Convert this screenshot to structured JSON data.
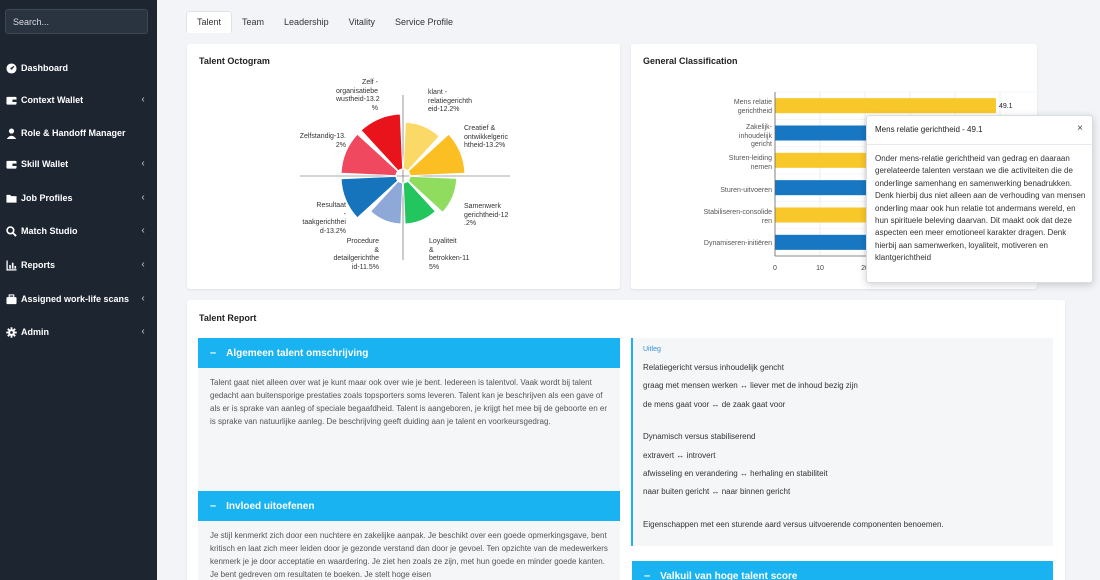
{
  "sidebar": {
    "search_placeholder": "Search...",
    "items": [
      {
        "label": "Dashboard",
        "icon": "dashboard-icon",
        "caret": false
      },
      {
        "label": "Context Wallet",
        "icon": "wallet-icon",
        "caret": true
      },
      {
        "label": "Role & Handoff Manager",
        "icon": "user-icon",
        "caret": false
      },
      {
        "label": "Skill Wallet",
        "icon": "wallet-icon",
        "caret": true
      },
      {
        "label": "Job Profiles",
        "icon": "folder-icon",
        "caret": true
      },
      {
        "label": "Match Studio",
        "icon": "search-icon",
        "caret": true
      },
      {
        "label": "Reports",
        "icon": "chart-icon",
        "caret": true
      },
      {
        "label": "Assigned work-life scans",
        "icon": "briefcase-icon",
        "caret": true
      },
      {
        "label": "Admin",
        "icon": "gear-icon",
        "caret": true
      }
    ]
  },
  "tabs": [
    "Talent",
    "Team",
    "Leadership",
    "Vitality",
    "Service Profile"
  ],
  "octogram": {
    "title": "Talent Octogram",
    "labels": [
      "Zelf -\norganisatiebe\nwustheid-13.2\n%",
      "klant -\nrelatiegerichth\neid-12.2%",
      "Creatief &\nontwikkelgeric\nhtheid-13.2%",
      "Samenwerk\ngerichtheid-12\n.2%",
      "Loyaliteit\n&\nbetrokken-11\n5%",
      "Procedure\n&\ndetailgerichthe\nid-11.5%",
      "Resultaat\n-\ntaakgerichthei\nd-13.2%",
      "Zelfstandig-13.\n2%"
    ]
  },
  "classification": {
    "title": "General Classification",
    "categories": [
      "Mens relatie\ngerichtheid",
      "Zakelijk-\ninhoudelijk\ngericht",
      "Sturen-leiding\nnemen",
      "Sturen-uitvoeren",
      "Stabiliseren-consolide\nren",
      "Dynamiseren-initiëren"
    ],
    "first_value_label": "49.1",
    "x_ticks": [
      "0",
      "10",
      "20"
    ]
  },
  "chart_data": [
    {
      "type": "pie",
      "title": "Talent Octogram",
      "categories": [
        "Zelf - organisatiebewustheid",
        "klant - relatiegerichtheid",
        "Creatief & ontwikkelgerichtheid",
        "Samenwerkgerichtheid",
        "Loyaliteit & betrokken",
        "Procedure & detailgerichtheid",
        "Resultaat - taakgerichtheid",
        "Zelfstandig"
      ],
      "values": [
        13.2,
        12.2,
        13.2,
        12.2,
        11.5,
        11.5,
        13.2,
        13.2
      ],
      "colors": [
        "#e8131b",
        "#fbd966",
        "#fbbf24",
        "#8fdc5f",
        "#22c55e",
        "#8ea8d8",
        "#1674bd",
        "#f0485f"
      ]
    },
    {
      "type": "bar",
      "orientation": "horizontal",
      "title": "General Classification",
      "categories": [
        "Mens relatie gerichtheid",
        "Zakelijk-inhoudelijk gericht",
        "Sturen-leiding nemen",
        "Sturen-uitvoeren",
        "Stabiliseren-consolideren",
        "Dynamiseren-initiëren"
      ],
      "values": [
        49.1,
        51,
        49,
        51,
        49,
        51
      ],
      "colors": [
        "#f8c82a",
        "#1877c2",
        "#f8c82a",
        "#1877c2",
        "#f8c82a",
        "#1877c2"
      ],
      "xlim": [
        0,
        60
      ],
      "grid": true
    }
  ],
  "tooltip": {
    "title": "Mens relatie gerichtheid - 49.1",
    "close": "×",
    "body": "Onder mens-relatie gerichtheid van gedrag en daaraan gerelateerde talenten verstaan we die activiteiten die de onderlinge samenhang en samenwerking benadrukken. Denk hierbij dus niet alleen aan de verhouding van mensen onderling maar ook hun relatie tot andermans wereld, en hun spirituele beleving daarvan. Dit maakt ook dat deze aspecten een meer emotioneel karakter dragen. Denk hierbij aan samenwerken, loyaliteit, motiveren en klantgerichtheid"
  },
  "report": {
    "title": "Talent Report",
    "sections": [
      {
        "title": "Algemeen talent omschrijving",
        "text": "Talent gaat niet alleen over wat je kunt maar ook over wie je bent. Iedereen is talentvol. Vaak wordt bij talent gedacht aan buitensporige prestaties zoals topsporters soms leveren. Talent kan je beschrijven als een gave of als er is sprake van aanleg of speciale begaafdheid. Talent is aangeboren, je krijgt het mee bij de geboorte en er is sprake van natuurlijke aanleg. De beschrijving geeft duiding aan je talent en voorkeursgedrag."
      },
      {
        "title": "Invloed uitoefenen",
        "text": "Je stijl kenmerkt zich door een nuchtere en zakelijke aanpak. Je beschikt over een goede opmerkingsgave, bent kritisch en laat zich meer leiden door je gezonde verstand dan door je gevoel. Ten opzichte van de medewerkers kenmerk je je door acceptatie en waardering. Je ziet hen zoals ze zijn, met hun goede en minder goede kanten. Je bent gedreven om resultaten te boeken. Je stelt hoge eisen"
      },
      {
        "title": "Valkuil van hoge talent score"
      }
    ],
    "uitleg": {
      "title": "Uitleg",
      "lines": [
        "Relatiegericht versus inhoudelijk gencht",
        "graag met mensen werken ↔ liever met de inhoud bezig zijn",
        "de mens gaat voor ↔ de zaak gaat voor",
        "Dynamisch versus stabiliserend",
        "extravert ↔ introvert",
        "afwisseling en verandering ↔ herhaling en stabiliteit",
        "naar buiten gericht ↔ naar binnen gericht",
        "Eigenschappen met een sturende aard versus uitvoerende componenten benoemen."
      ]
    }
  }
}
